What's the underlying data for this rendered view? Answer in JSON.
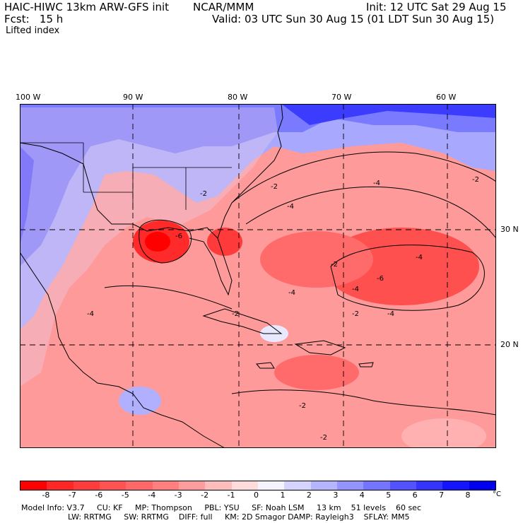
{
  "header": {
    "model": "HAIC-HIWC 13km ARW-GFS init",
    "org": "NCAR/MMM",
    "init": "Init: 12 UTC Sat 29 Aug 15",
    "fcst": "Fcst:   15 h",
    "valid": "Valid: 03 UTC Sun 30 Aug 15 (01 LDT Sun 30 Aug 15)",
    "field": "Lifted index"
  },
  "axes": {
    "lon_labels": [
      "100 W",
      "90 W",
      "80 W",
      "70 W",
      "60 W"
    ],
    "lat_labels": [
      "30 N",
      "20 N"
    ]
  },
  "colorbar": {
    "ticks": [
      "-8",
      "-7",
      "-6",
      "-5",
      "-4",
      "-3",
      "-2",
      "-1",
      "0",
      "1",
      "2",
      "3",
      "4",
      "5",
      "6",
      "7",
      "8"
    ],
    "unit": "°C",
    "colors": [
      "#ff0000",
      "#ff2626",
      "#ff3c3c",
      "#ff5252",
      "#ff6868",
      "#ff7e7e",
      "#ff9c9c",
      "#ffbcbc",
      "#ffdcdc",
      "#f4f4ff",
      "#d4d4ff",
      "#b4b4ff",
      "#9494ff",
      "#7474ff",
      "#5252ff",
      "#3434ff",
      "#1414ff",
      "#0000ee"
    ]
  },
  "map": {
    "contour_labels": [
      "-2",
      "-4",
      "-6",
      "-2",
      "-4",
      "-2",
      "-4",
      "-2",
      "-2",
      "-4",
      "-6",
      "-4",
      "-4",
      "-2",
      "-4",
      "-2",
      "-2"
    ]
  },
  "footer": {
    "line1": "Model Info: V3.7     CU: KF     MP: Thompson     PBL: YSU     SF: Noah LSM     13 km    51 levels    60 sec",
    "line2": "LW: RRTMG     SW: RRTMG    DIFF: full     KM: 2D Smagor DAMP: Rayleigh3    SFLAY: MM5"
  }
}
